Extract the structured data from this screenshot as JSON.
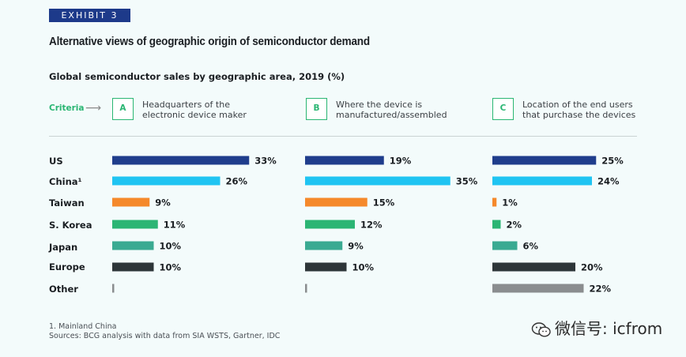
{
  "exhibit_label": "EXHIBIT 3",
  "title": "Alternative views of geographic origin of semiconductor demand",
  "subtitle": "Global semiconductor sales by geographic area, 2019 (%)",
  "criteria_label": "Criteria",
  "columns": [
    {
      "letter": "A",
      "line1": "Headquarters of the",
      "line2": "electronic device maker"
    },
    {
      "letter": "B",
      "line1": "Where the device is",
      "line2": "manufactured/assembled"
    },
    {
      "letter": "C",
      "line1": "Location of the end users",
      "line2": "that purchase the devices"
    }
  ],
  "footnote_1": "1. Mainland China",
  "footnote_2": "Sources: BCG analysis with data from SIA WSTS, Gartner, IDC",
  "watermark": "微信号: icfrom",
  "chart_data": {
    "type": "bar",
    "orientation": "horizontal",
    "title": "Global semiconductor sales by geographic area, 2019 (%)",
    "categories": [
      "US",
      "China¹",
      "Taiwan",
      "S. Korea",
      "Japan",
      "Europe",
      "Other"
    ],
    "colors": [
      "#1f3d8c",
      "#1fc4f2",
      "#f5892b",
      "#2bb574",
      "#3aaa92",
      "#2d3538",
      "#8a8d8f"
    ],
    "series": [
      {
        "name": "A",
        "values": [
          33,
          26,
          9,
          11,
          10,
          10,
          0
        ],
        "labels": [
          "33%",
          "26%",
          "9%",
          "11%",
          "10%",
          "10%",
          ""
        ]
      },
      {
        "name": "B",
        "values": [
          19,
          35,
          15,
          12,
          9,
          10,
          0
        ],
        "labels": [
          "19%",
          "35%",
          "15%",
          "12%",
          "9%",
          "10%",
          ""
        ]
      },
      {
        "name": "C",
        "values": [
          25,
          24,
          1,
          2,
          6,
          20,
          22
        ],
        "labels": [
          "25%",
          "24%",
          "1%",
          "2%",
          "6%",
          "20%",
          "22%"
        ]
      }
    ],
    "xlim": [
      0,
      35
    ]
  }
}
